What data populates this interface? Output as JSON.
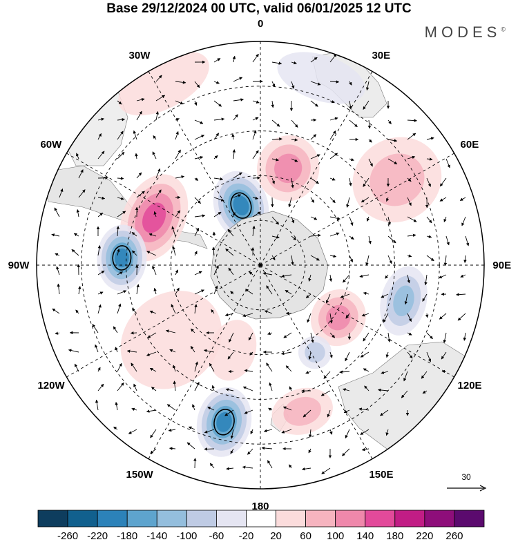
{
  "title": "Base 29/12/2024 00 UTC, valid 06/01/2025 12 UTC",
  "brand": {
    "name": "MODES",
    "mark": "©"
  },
  "longitude_labels": [
    {
      "text": "0",
      "lon": 0
    },
    {
      "text": "30E",
      "lon": 30
    },
    {
      "text": "60E",
      "lon": 60
    },
    {
      "text": "90E",
      "lon": 90
    },
    {
      "text": "120E",
      "lon": 120
    },
    {
      "text": "150E",
      "lon": 150
    },
    {
      "text": "180",
      "lon": 180
    },
    {
      "text": "150W",
      "lon": 210
    },
    {
      "text": "120W",
      "lon": 240
    },
    {
      "text": "90W",
      "lon": 270
    },
    {
      "text": "60W",
      "lon": 300
    },
    {
      "text": "30W",
      "lon": 330
    }
  ],
  "reference_vector": {
    "label": "30"
  },
  "colorbar": {
    "labels": [
      "-260",
      "-220",
      "-180",
      "-140",
      "-100",
      "-60",
      "-20",
      "20",
      "60",
      "100",
      "140",
      "180",
      "220",
      "260"
    ],
    "colors": [
      "#0e3d5e",
      "#11608e",
      "#2c82b9",
      "#5ea4ce",
      "#94bedd",
      "#bfcbe4",
      "#e5e5f2",
      "#ffffff",
      "#fbdcdc",
      "#f6b4bf",
      "#ef88ab",
      "#e24a9a",
      "#c11d85",
      "#8e0e7a",
      "#5b0a6e"
    ]
  },
  "anomalies": [
    {
      "lon": 342,
      "r": 0.28,
      "sx": 26,
      "sy": 34,
      "v": -200
    },
    {
      "lon": 16,
      "r": 0.45,
      "sx": 30,
      "sy": 32,
      "v": 150
    },
    {
      "lon": 294,
      "r": 0.52,
      "sx": 44,
      "sy": 30,
      "v": 160
    },
    {
      "lon": 273,
      "r": 0.62,
      "sx": 32,
      "sy": 24,
      "v": -200
    },
    {
      "lon": 58,
      "r": 0.72,
      "sx": 40,
      "sy": 44,
      "v": 110
    },
    {
      "lon": 104,
      "r": 0.66,
      "sx": 34,
      "sy": 22,
      "v": -150
    },
    {
      "lon": 124,
      "r": 0.42,
      "sx": 28,
      "sy": 26,
      "v": 140
    },
    {
      "lon": 193,
      "r": 0.72,
      "sx": 26,
      "sy": 34,
      "v": -220
    },
    {
      "lon": 164,
      "r": 0.68,
      "sx": 30,
      "sy": 22,
      "v": 90
    },
    {
      "lon": 148,
      "r": 0.46,
      "sx": 16,
      "sy": 16,
      "v": -80
    },
    {
      "lon": 230,
      "r": 0.52,
      "sx": 44,
      "sy": 52,
      "v": 60
    },
    {
      "lon": 18,
      "r": 0.88,
      "sx": 44,
      "sy": 22,
      "v": -40
    },
    {
      "lon": 332,
      "r": 0.92,
      "sx": 48,
      "sy": 24,
      "v": 50
    },
    {
      "lon": 198,
      "r": 0.4,
      "sx": 22,
      "sy": 30,
      "v": 40
    }
  ]
}
